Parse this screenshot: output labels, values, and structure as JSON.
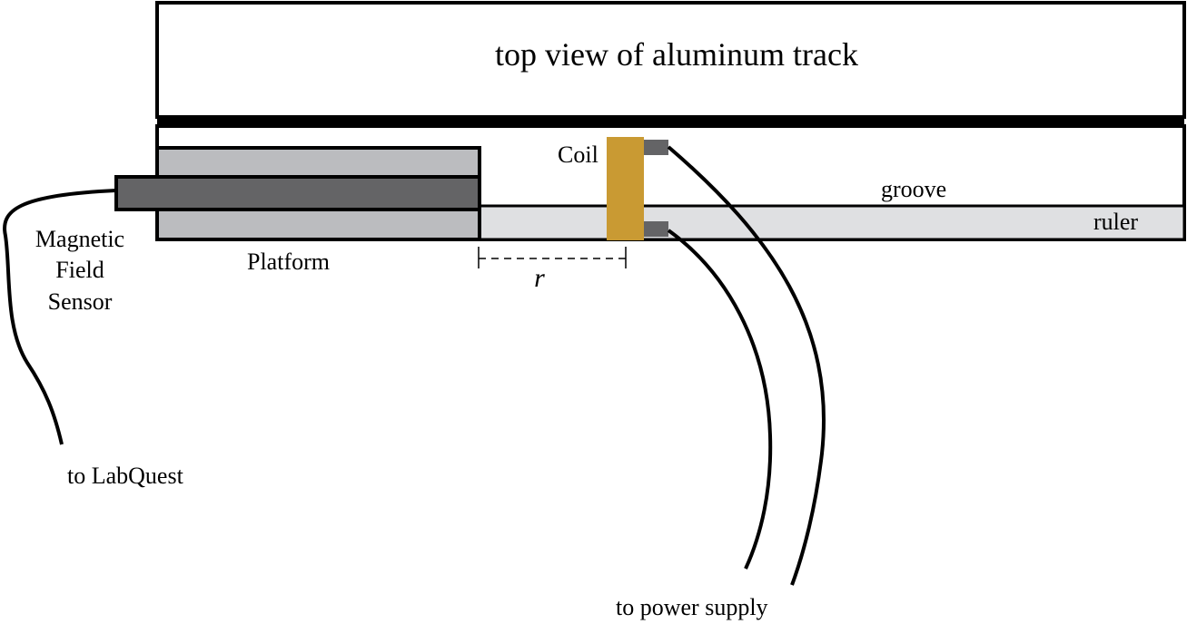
{
  "diagram": {
    "title": "top view of aluminum track",
    "labels": {
      "coil": "Coil",
      "groove": "groove",
      "ruler": "ruler",
      "platform": "Platform",
      "sensor_line1": "Magnetic",
      "sensor_line2": "Field",
      "sensor_line3": "Sensor",
      "distance": "r",
      "labquest": "to LabQuest",
      "power_supply": "to power supply"
    },
    "colors": {
      "platform": "#bbbcbf",
      "sensor": "#646466",
      "ruler": "#dfe0e2",
      "coil": "#c99a33",
      "terminal": "#646466",
      "outline": "#000000"
    }
  }
}
